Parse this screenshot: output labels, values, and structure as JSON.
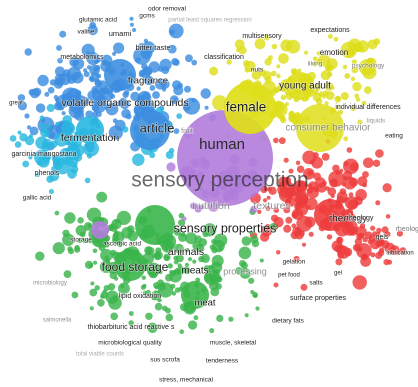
{
  "map": {
    "colors": {
      "blue": "#3d8ee0",
      "cyan": "#28b8e0",
      "yellow": "#dede1a",
      "red": "#ee3c3c",
      "green": "#39b54a",
      "purple": "#b07cdc"
    },
    "clusters": [
      {
        "name": "blue",
        "color_key": "blue"
      },
      {
        "name": "cyan",
        "color_key": "cyan"
      },
      {
        "name": "yellow",
        "color_key": "yellow"
      },
      {
        "name": "red",
        "color_key": "red"
      },
      {
        "name": "green",
        "color_key": "green"
      },
      {
        "name": "purple",
        "color_key": "purple"
      }
    ],
    "terms": [
      {
        "label": "sensory perception",
        "cluster": "purple"
      },
      {
        "label": "human",
        "cluster": "purple"
      },
      {
        "label": "sensory properties",
        "cluster": "green"
      },
      {
        "label": "food storage",
        "cluster": "green"
      },
      {
        "label": "female",
        "cluster": "yellow"
      },
      {
        "label": "article",
        "cluster": "blue"
      },
      {
        "label": "volatile organic compounds",
        "cluster": "blue"
      },
      {
        "label": "fermentation",
        "cluster": "cyan"
      },
      {
        "label": "consumer behavior",
        "cluster": "yellow"
      },
      {
        "label": "young adult",
        "cluster": "yellow"
      },
      {
        "label": "rheology",
        "cluster": "red"
      },
      {
        "label": "animals",
        "cluster": "green"
      },
      {
        "label": "meats",
        "cluster": "green"
      },
      {
        "label": "meat",
        "cluster": "green"
      },
      {
        "label": "fragrance",
        "cluster": "blue"
      },
      {
        "label": "nutrition",
        "cluster": "purple"
      },
      {
        "label": "textures",
        "cluster": "purple"
      },
      {
        "label": "bitter taste",
        "cluster": "blue"
      },
      {
        "label": "umami",
        "cluster": "blue"
      },
      {
        "label": "valine",
        "cluster": "blue"
      },
      {
        "label": "glutamic acid",
        "cluster": "blue"
      },
      {
        "label": "gcms",
        "cluster": "blue"
      },
      {
        "label": "odor removal",
        "cluster": "blue"
      },
      {
        "label": "partial least squares regression",
        "cluster": "blue"
      },
      {
        "label": "metabolomics",
        "cluster": "blue"
      },
      {
        "label": "classification",
        "cluster": "blue"
      },
      {
        "label": "multisensory",
        "cluster": "yellow"
      },
      {
        "label": "expectations",
        "cluster": "yellow"
      },
      {
        "label": "emotion",
        "cluster": "yellow"
      },
      {
        "label": "liking",
        "cluster": "yellow"
      },
      {
        "label": "psychology",
        "cluster": "yellow"
      },
      {
        "label": "nuts",
        "cluster": "yellow"
      },
      {
        "label": "individual differences",
        "cluster": "red"
      },
      {
        "label": "liquids",
        "cluster": "red"
      },
      {
        "label": "eating",
        "cluster": "red"
      },
      {
        "label": "gels",
        "cluster": "red"
      },
      {
        "label": "rheology",
        "cluster": "red"
      },
      {
        "label": "gelation",
        "cluster": "red"
      },
      {
        "label": "pet food",
        "cluster": "red"
      },
      {
        "label": "salts",
        "cluster": "red"
      },
      {
        "label": "gel",
        "cluster": "red"
      },
      {
        "label": "lubrication",
        "cluster": "red"
      },
      {
        "label": "surface properties",
        "cluster": "red"
      },
      {
        "label": "dietary fats",
        "cluster": "red"
      },
      {
        "label": "great",
        "cluster": "blue"
      },
      {
        "label": "garcinia mangostana",
        "cluster": "cyan"
      },
      {
        "label": "phenols",
        "cluster": "cyan"
      },
      {
        "label": "gallic acid",
        "cluster": "cyan"
      },
      {
        "label": "fruit",
        "cluster": "cyan"
      },
      {
        "label": "storage",
        "cluster": "green"
      },
      {
        "label": "ascorbic acid",
        "cluster": "green"
      },
      {
        "label": "lipid oxidation",
        "cluster": "green"
      },
      {
        "label": "microbiology",
        "cluster": "green"
      },
      {
        "label": "salmonella",
        "cluster": "green"
      },
      {
        "label": "thiobarbituric acid reactive s",
        "cluster": "green"
      },
      {
        "label": "microbiological quality",
        "cluster": "green"
      },
      {
        "label": "muscle, skeletal",
        "cluster": "green"
      },
      {
        "label": "sus scrofa",
        "cluster": "green"
      },
      {
        "label": "tenderness",
        "cluster": "green"
      },
      {
        "label": "stress, mechanical",
        "cluster": "green"
      },
      {
        "label": "total viable counts",
        "cluster": "green"
      },
      {
        "label": "processing",
        "cluster": "purple"
      },
      {
        "label": "rheology",
        "cluster": "red"
      }
    ]
  }
}
